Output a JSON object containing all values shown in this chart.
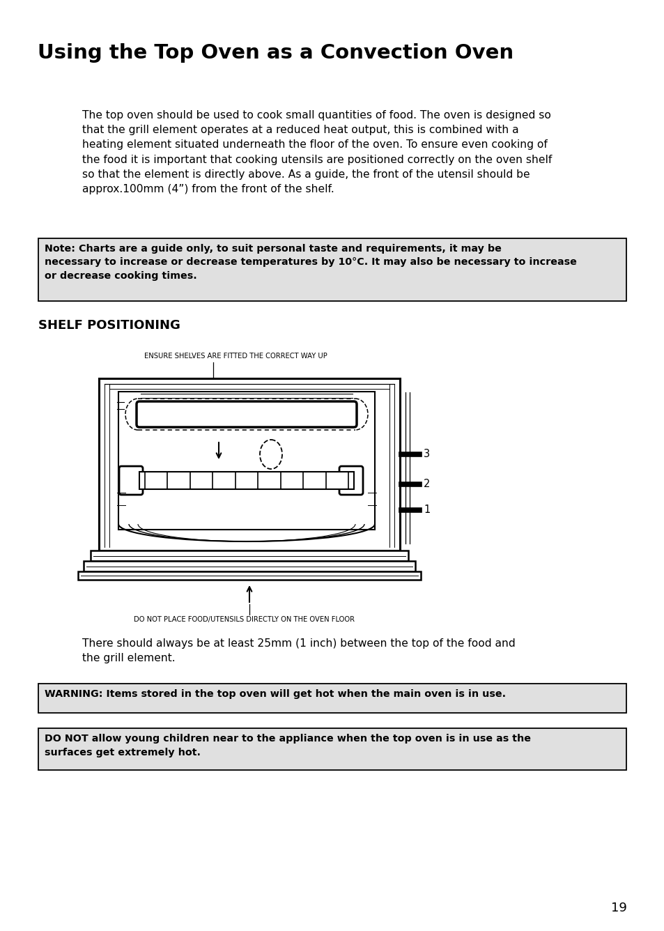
{
  "title": "Using the Top Oven as a Convection Oven",
  "body_text": "The top oven should be used to cook small quantities of food. The oven is designed so\nthat the grill element operates at a reduced heat output, this is combined with a\nheating element situated underneath the floor of the oven. To ensure even cooking of\nthe food it is important that cooking utensils are positioned correctly on the oven shelf\nso that the element is directly above. As a guide, the front of the utensil should be\napprox.100mm (4”) from the front of the shelf.",
  "note_text": "Note: Charts are a guide only, to suit personal taste and requirements, it may be\nnecessary to increase or decrease temperatures by 10°C. It may also be necessary to increase\nor decrease cooking times.",
  "shelf_heading": "SHELF POSITIONING",
  "caption_top": "ENSURE SHELVES ARE FITTED THE CORRECT WAY UP",
  "caption_bottom": "DO NOT PLACE FOOD/UTENSILS DIRECTLY ON THE OVEN FLOOR",
  "middle_text": "There should always be at least 25mm (1 inch) between the top of the food and\nthe grill element.",
  "warning_text": "WARNING: Items stored in the top oven will get hot when the main oven is in use.",
  "donot_text": "DO NOT allow young children near to the appliance when the top oven is in use as the\nsurfaces get extremely hot.",
  "page_number": "19",
  "bg_color": "#ffffff",
  "text_color": "#000000",
  "box_bg": "#e0e0e0"
}
